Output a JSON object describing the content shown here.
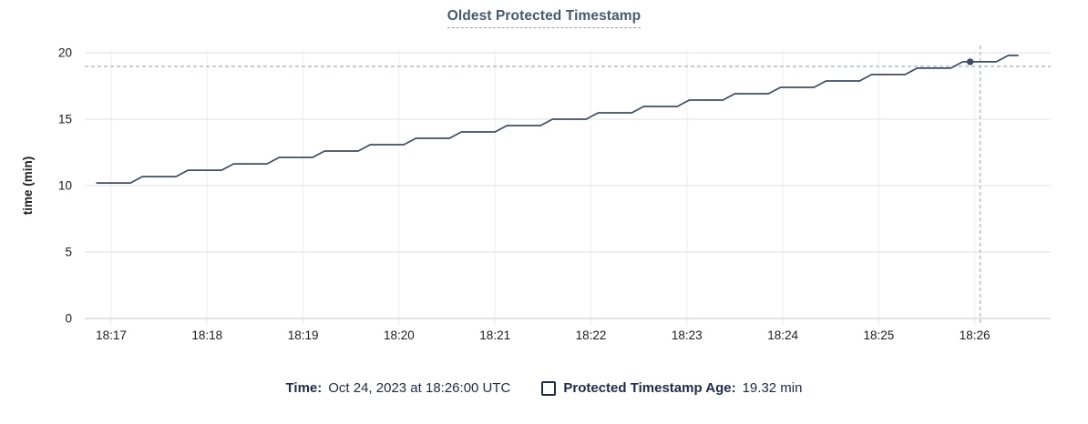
{
  "title": "Oldest Protected Timestamp",
  "colors": {
    "title_text": "#475872",
    "title_underline": "#97a2b9",
    "legend_text": "#1f2b4c",
    "series_line": "#3e4d66",
    "hover_dot": "#3e4d66",
    "crosshair": "#a9b6c2",
    "grid_horizontal": "#e8e8e8",
    "grid_vertical": "#f1f1f1",
    "axis_baseline": "#e2e2e2",
    "tick_text": "#1c1c1c"
  },
  "legend": {
    "time_label": "Time:",
    "time_value": "Oct 24, 2023 at 18:26:00 UTC",
    "checkbox_icon": "checkbox-unchecked",
    "series_label": "Protected Timestamp Age:",
    "series_value": "19.32 min"
  },
  "chart_data": {
    "type": "line",
    "title": "Oldest Protected Timestamp",
    "xlabel": "",
    "ylabel": "time (min)",
    "ylim": [
      0,
      20.5
    ],
    "y_ticks": [
      0,
      5,
      10,
      15,
      20
    ],
    "x_ticks": [
      "18:17",
      "18:18",
      "18:19",
      "18:20",
      "18:21",
      "18:22",
      "18:23",
      "18:24",
      "18:25",
      "18:26"
    ],
    "x_unit": "time of day (UTC), minutes after 18:16",
    "grid": true,
    "legend_position": "bottom",
    "series": [
      {
        "name": "Protected Timestamp Age",
        "unit": "min",
        "points": [
          [
            0.85,
            10.2
          ],
          [
            1.2,
            10.2
          ],
          [
            1.325,
            10.68
          ],
          [
            1.675,
            10.68
          ],
          [
            1.8,
            11.16
          ],
          [
            2.15,
            11.16
          ],
          [
            2.275,
            11.64
          ],
          [
            2.625,
            11.64
          ],
          [
            2.75,
            12.12
          ],
          [
            3.1,
            12.12
          ],
          [
            3.225,
            12.6
          ],
          [
            3.575,
            12.6
          ],
          [
            3.7,
            13.08
          ],
          [
            4.05,
            13.08
          ],
          [
            4.175,
            13.56
          ],
          [
            4.525,
            13.56
          ],
          [
            4.65,
            14.04
          ],
          [
            5.0,
            14.04
          ],
          [
            5.125,
            14.52
          ],
          [
            5.475,
            14.52
          ],
          [
            5.6,
            15.0
          ],
          [
            5.95,
            15.0
          ],
          [
            6.075,
            15.48
          ],
          [
            6.425,
            15.48
          ],
          [
            6.55,
            15.96
          ],
          [
            6.9,
            15.96
          ],
          [
            7.025,
            16.44
          ],
          [
            7.375,
            16.44
          ],
          [
            7.5,
            16.92
          ],
          [
            7.85,
            16.92
          ],
          [
            7.975,
            17.4
          ],
          [
            8.325,
            17.4
          ],
          [
            8.45,
            17.88
          ],
          [
            8.8,
            17.88
          ],
          [
            8.925,
            18.36
          ],
          [
            9.275,
            18.36
          ],
          [
            9.4,
            18.84
          ],
          [
            9.75,
            18.84
          ],
          [
            9.875,
            19.32
          ],
          [
            10.225,
            19.32
          ],
          [
            10.35,
            19.8
          ],
          [
            10.45,
            19.8
          ]
        ]
      }
    ],
    "crosshair": {
      "time_label": "18:26:00",
      "t": 10.0,
      "value": 19.32
    }
  }
}
